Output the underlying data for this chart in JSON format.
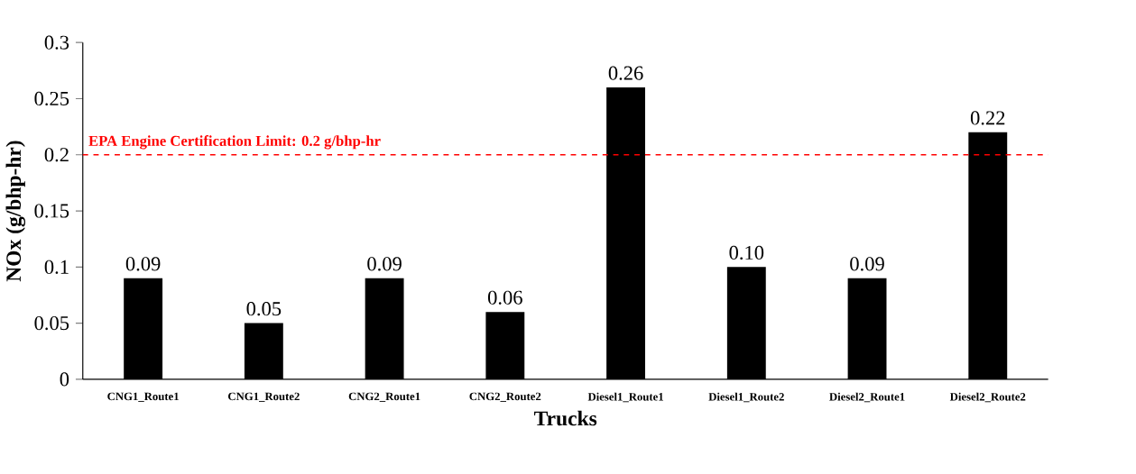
{
  "chart_data": {
    "type": "bar",
    "xlabel": "Trucks",
    "ylabel": "NOx (g/bhp-hr)",
    "categories": [
      "CNG1_Route1",
      "CNG1_Route2",
      "CNG2_Route1",
      "CNG2_Route2",
      "Diesel1_Route1",
      "Diesel1_Route2",
      "Diesel2_Route1",
      "Diesel2_Route2"
    ],
    "values": [
      0.09,
      0.05,
      0.09,
      0.06,
      0.26,
      0.1,
      0.09,
      0.22
    ],
    "value_labels": [
      "0.09",
      "0.05",
      "0.09",
      "0.06",
      "0.26",
      "0.10",
      "0.09",
      "0.22"
    ],
    "color": "#000000",
    "ylim": [
      0,
      0.3
    ],
    "yticks": [
      0,
      0.05,
      0.1,
      0.15,
      0.2,
      0.25,
      0.3
    ],
    "ref_lines": [
      {
        "axis": "y",
        "value": 0.2,
        "label": "EPA Engine Certification Limit: 0.2 g/bhp-hr",
        "color": "#ff0000",
        "line_style": "dashed"
      }
    ],
    "grid": false
  }
}
